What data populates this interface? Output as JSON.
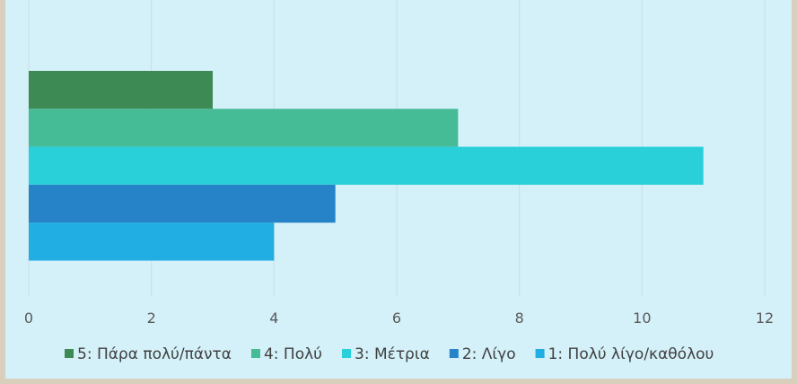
{
  "chart_data": {
    "type": "bar",
    "orientation": "horizontal",
    "title": "",
    "xlabel": "",
    "ylabel": "",
    "xlim": [
      0,
      12
    ],
    "x_ticks": [
      "0",
      "2",
      "4",
      "6",
      "8",
      "10",
      "12"
    ],
    "grid": "vertical",
    "legend_position": "bottom",
    "series": [
      {
        "name": "5: Πάρα πολύ/πάντα",
        "value": 3,
        "color": "#3e8a55"
      },
      {
        "name": "4: Πολύ",
        "value": 7,
        "color": "#45bb96"
      },
      {
        "name": "3: Μέτρια",
        "value": 11,
        "color": "#29cfd9"
      },
      {
        "name": "2: Λίγο",
        "value": 5,
        "color": "#2683c8"
      },
      {
        "name": "1: Πολύ λίγο/καθόλου",
        "value": 4,
        "color": "#21aee3"
      }
    ]
  }
}
